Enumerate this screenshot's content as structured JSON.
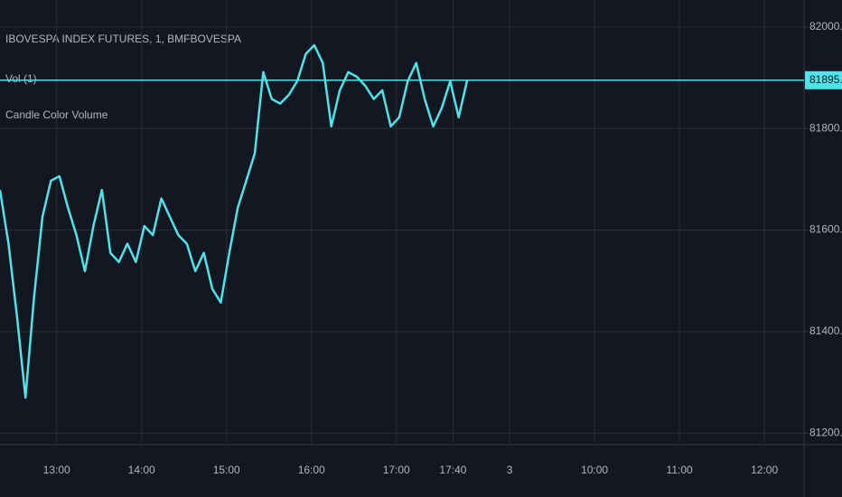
{
  "chart_data": {
    "type": "line",
    "title": "IBOVESPA INDEX FUTURES, 1, BMFBOVESPA",
    "indicators": [
      "Vol (1)",
      "Candle Color Volume"
    ],
    "x": [
      20,
      26,
      32,
      38,
      44,
      50,
      56,
      62,
      68,
      74,
      80,
      86,
      92,
      98,
      104,
      110,
      116,
      122,
      128,
      134,
      140,
      146,
      152,
      158,
      164,
      170,
      176,
      182,
      188,
      194,
      200,
      206,
      212,
      218,
      224,
      230,
      236,
      242,
      248,
      254,
      260,
      266,
      272,
      278,
      284,
      290,
      296,
      302,
      308,
      314,
      320,
      326,
      332,
      338,
      344,
      350
    ],
    "values": [
      81679,
      81573,
      81430,
      81270,
      81466,
      81626,
      81697,
      81706,
      81644,
      81590,
      81519,
      81608,
      81679,
      81555,
      81537,
      81573,
      81537,
      81608,
      81590,
      81662,
      81626,
      81590,
      81573,
      81519,
      81555,
      81484,
      81457,
      81555,
      81644,
      81697,
      81751,
      81911,
      81858,
      81849,
      81866,
      81893,
      81947,
      81964,
      81929,
      81804,
      81875,
      81911,
      81902,
      81884,
      81858,
      81875,
      81804,
      81822,
      81893,
      81929,
      81858,
      81804,
      81840,
      81893,
      81822,
      81895
    ],
    "color": "#4fe3ea",
    "xlim": [
      20,
      588
    ],
    "ylim": [
      81181,
      82053
    ],
    "xticks": [
      {
        "value": 60,
        "label": "13:00"
      },
      {
        "value": 120,
        "label": "14:00"
      },
      {
        "value": 180,
        "label": "15:00"
      },
      {
        "value": 240,
        "label": "16:00"
      },
      {
        "value": 300,
        "label": "17:00"
      },
      {
        "value": 340,
        "label": "17:40"
      },
      {
        "value": 380,
        "label": "3"
      },
      {
        "value": 440,
        "label": "10:00"
      },
      {
        "value": 500,
        "label": "11:00"
      },
      {
        "value": 560,
        "label": "12:00"
      }
    ],
    "yticks": [
      {
        "value": 81200,
        "label": "81200.0"
      },
      {
        "value": 81400,
        "label": "81400.0"
      },
      {
        "value": 81600,
        "label": "81600.0"
      },
      {
        "value": 81800,
        "label": "81800.0"
      },
      {
        "value": 82000,
        "label": "82000.0"
      }
    ],
    "last_price": {
      "value": 81895,
      "label": "81895.0"
    },
    "grid": true
  }
}
